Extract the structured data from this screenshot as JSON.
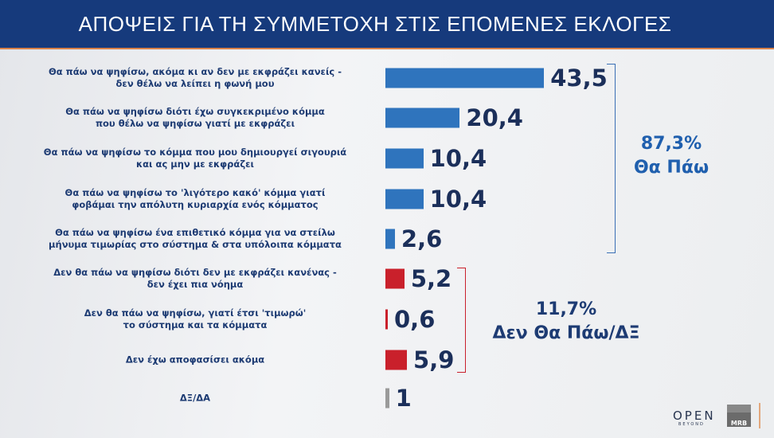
{
  "header": {
    "title": "ΑΠΟΨΕΙΣ ΓΙΑ ΤΗ ΣΥΜΜΕΤΟΧΗ ΣΤΙΣ ΕΠΟΜΕΝΕΣ ΕΚΛΟΓΕΣ"
  },
  "chart_data": {
    "type": "bar",
    "orientation": "horizontal",
    "title": "ΑΠΟΨΕΙΣ ΓΙΑ ΤΗ ΣΥΜΜΕΤΟΧΗ ΣΤΙΣ ΕΠΟΜΕΝΕΣ ΕΚΛΟΓΕΣ",
    "categories": [
      [
        "Θα πάω να ψηφίσω, ακόμα κι αν δεν με εκφράζει κανείς -",
        "δεν θέλω να λείπει η φωνή μου"
      ],
      [
        "Θα πάω να ψηφίσω διότι έχω συγκεκριμένο κόμμα",
        "που θέλω να ψηφίσω γιατί με εκφράζει"
      ],
      [
        "Θα πάω να ψηφίσω το κόμμα που μου δημιουργεί σιγουριά",
        "και ας μην με εκφράζει"
      ],
      [
        "Θα πάω να ψηφίσω το 'λιγότερο κακό' κόμμα γιατί",
        "φοβάμαι την απόλυτη κυριαρχία ενός κόμματος"
      ],
      [
        "Θα πάω να ψηφίσω ένα επιθετικό κόμμα για να στείλω",
        "μήνυμα τιμωρίας στο σύστημα & στα υπόλοιπα κόμματα"
      ],
      [
        "Δεν θα πάω να ψηφίσω διότι δεν με εκφράζει κανένας -",
        "δεν έχει πια νόημα"
      ],
      [
        "Δεν θα πάω να ψηφίσω, γιατί έτσι 'τιμωρώ'",
        "το σύστημα και τα κόμματα"
      ],
      [
        "Δεν έχω αποφασίσει ακόμα"
      ],
      [
        "ΔΞ/ΔΑ"
      ]
    ],
    "values": [
      43.5,
      20.4,
      10.4,
      10.4,
      2.6,
      5.2,
      0.6,
      5.9,
      1
    ],
    "value_labels": [
      "43,5",
      "20,4",
      "10,4",
      "10,4",
      "2,6",
      "5,2",
      "0,6",
      "5,9",
      "1"
    ],
    "bar_colors": [
      "#2f74bd",
      "#2f74bd",
      "#2f74bd",
      "#2f74bd",
      "#2f74bd",
      "#c9202b",
      "#c9202b",
      "#c9202b",
      "#9a9a9a"
    ],
    "groups": [
      {
        "percent": "87,3%",
        "label": "Θα Πάω",
        "color": "#1f5fae"
      },
      {
        "percent": "11,7%",
        "label": "Δεν Θα Πάω/ΔΞ",
        "color": "#1d3b73"
      }
    ]
  },
  "branding": {
    "open": "OPEN",
    "beyond": "BEYOND",
    "mrb": "MRB"
  }
}
